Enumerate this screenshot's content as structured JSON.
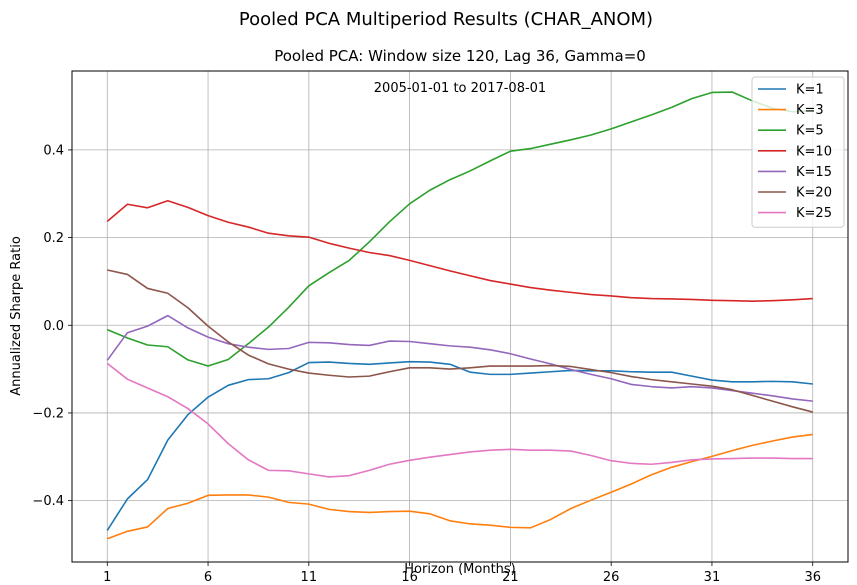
{
  "chart_data": {
    "type": "line",
    "suptitle": "Pooled PCA Multiperiod Results (CHAR_ANOM)",
    "title": "Pooled PCA: Window size 120, Lag 36, Gamma=0",
    "annotation": "2005-01-01 to 2017-08-01",
    "xlabel": "Horizon (Months)",
    "ylabel": "Annualized Sharpe Ratio",
    "xlim": [
      -0.75,
      37.75
    ],
    "ylim": [
      -0.54,
      0.58
    ],
    "xticks": [
      1,
      6,
      11,
      16,
      21,
      26,
      31,
      36
    ],
    "yticks": [
      -0.4,
      -0.2,
      0.0,
      0.2,
      0.4
    ],
    "ytick_labels": [
      "−0.4",
      "−0.2",
      "0.0",
      "0.2",
      "0.4"
    ],
    "grid": true,
    "legend_position": "top-right",
    "x": [
      1,
      2,
      3,
      4,
      5,
      6,
      7,
      8,
      9,
      10,
      11,
      12,
      13,
      14,
      15,
      16,
      17,
      18,
      19,
      20,
      21,
      22,
      23,
      24,
      25,
      26,
      27,
      28,
      29,
      30,
      31,
      32,
      33,
      34,
      35,
      36
    ],
    "series": [
      {
        "name": "K=1",
        "color": "#1f77b4",
        "values": [
          -0.468,
          -0.396,
          -0.352,
          -0.262,
          -0.204,
          -0.164,
          -0.137,
          -0.124,
          -0.122,
          -0.108,
          -0.085,
          -0.084,
          -0.087,
          -0.089,
          -0.086,
          -0.083,
          -0.084,
          -0.089,
          -0.107,
          -0.112,
          -0.112,
          -0.109,
          -0.106,
          -0.103,
          -0.104,
          -0.104,
          -0.106,
          -0.107,
          -0.107,
          -0.116,
          -0.125,
          -0.129,
          -0.129,
          -0.128,
          -0.129,
          -0.134
        ]
      },
      {
        "name": "K=3",
        "color": "#ff7f0e",
        "values": [
          -0.487,
          -0.47,
          -0.46,
          -0.418,
          -0.406,
          -0.388,
          -0.387,
          -0.387,
          -0.392,
          -0.404,
          -0.408,
          -0.42,
          -0.425,
          -0.427,
          -0.425,
          -0.424,
          -0.43,
          -0.446,
          -0.453,
          -0.456,
          -0.461,
          -0.462,
          -0.443,
          -0.418,
          -0.399,
          -0.381,
          -0.362,
          -0.341,
          -0.324,
          -0.311,
          -0.299,
          -0.286,
          -0.274,
          -0.264,
          -0.255,
          -0.249
        ]
      },
      {
        "name": "K=5",
        "color": "#2ca02c",
        "values": [
          -0.01,
          -0.029,
          -0.045,
          -0.049,
          -0.079,
          -0.093,
          -0.078,
          -0.042,
          -0.004,
          0.041,
          0.09,
          0.12,
          0.148,
          0.19,
          0.236,
          0.277,
          0.308,
          0.332,
          0.352,
          0.375,
          0.397,
          0.403,
          0.413,
          0.423,
          0.434,
          0.448,
          0.464,
          0.48,
          0.497,
          0.517,
          0.531,
          0.532,
          0.512,
          0.495,
          0.487,
          0.49
        ]
      },
      {
        "name": "K=10",
        "color": "#d62728",
        "values": [
          0.237,
          0.276,
          0.268,
          0.284,
          0.269,
          0.25,
          0.235,
          0.224,
          0.21,
          0.204,
          0.201,
          0.187,
          0.176,
          0.166,
          0.159,
          0.148,
          0.136,
          0.124,
          0.113,
          0.102,
          0.094,
          0.086,
          0.08,
          0.075,
          0.07,
          0.067,
          0.063,
          0.061,
          0.06,
          0.059,
          0.057,
          0.056,
          0.055,
          0.056,
          0.058,
          0.061
        ]
      },
      {
        "name": "K=15",
        "color": "#9467bd",
        "values": [
          -0.08,
          -0.017,
          -0.002,
          0.022,
          -0.006,
          -0.027,
          -0.042,
          -0.05,
          -0.055,
          -0.053,
          -0.039,
          -0.04,
          -0.044,
          -0.046,
          -0.036,
          -0.037,
          -0.042,
          -0.047,
          -0.05,
          -0.056,
          -0.065,
          -0.077,
          -0.088,
          -0.101,
          -0.112,
          -0.122,
          -0.135,
          -0.14,
          -0.143,
          -0.14,
          -0.143,
          -0.149,
          -0.155,
          -0.161,
          -0.168,
          -0.173
        ]
      },
      {
        "name": "K=20",
        "color": "#8c564b",
        "values": [
          0.126,
          0.116,
          0.084,
          0.073,
          0.04,
          -0.002,
          -0.038,
          -0.068,
          -0.088,
          -0.1,
          -0.109,
          -0.114,
          -0.118,
          -0.116,
          -0.106,
          -0.097,
          -0.097,
          -0.1,
          -0.097,
          -0.093,
          -0.093,
          -0.093,
          -0.092,
          -0.094,
          -0.101,
          -0.108,
          -0.117,
          -0.124,
          -0.129,
          -0.134,
          -0.139,
          -0.147,
          -0.16,
          -0.173,
          -0.186,
          -0.198
        ]
      },
      {
        "name": "K=25",
        "color": "#e377c2",
        "values": [
          -0.087,
          -0.123,
          -0.143,
          -0.163,
          -0.19,
          -0.225,
          -0.27,
          -0.307,
          -0.331,
          -0.332,
          -0.339,
          -0.346,
          -0.343,
          -0.331,
          -0.317,
          -0.308,
          -0.301,
          -0.295,
          -0.289,
          -0.285,
          -0.283,
          -0.285,
          -0.285,
          -0.287,
          -0.297,
          -0.309,
          -0.315,
          -0.317,
          -0.313,
          -0.307,
          -0.305,
          -0.304,
          -0.303,
          -0.303,
          -0.304,
          -0.304
        ]
      }
    ]
  }
}
